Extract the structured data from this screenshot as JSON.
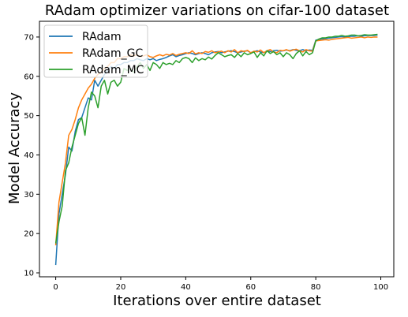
{
  "colors": {
    "RAdam": "#1f77b4",
    "RAdam_GC": "#ff7f0e",
    "RAdam_MC": "#2ca02c",
    "background": "#ffffff",
    "axis": "#000000"
  },
  "chart_data": {
    "type": "line",
    "title": "RAdam optimizer variations on cifar-100 dataset",
    "xlabel": "Iterations over entire dataset",
    "ylabel": "Model Accuracy",
    "xlim": [
      -5,
      104
    ],
    "ylim": [
      9,
      74
    ],
    "xticks": [
      0,
      20,
      40,
      60,
      80,
      100
    ],
    "yticks": [
      10,
      20,
      30,
      40,
      50,
      60,
      70
    ],
    "grid": false,
    "legend_position": "top-left",
    "x": [
      0,
      1,
      2,
      3,
      4,
      5,
      6,
      7,
      8,
      9,
      10,
      11,
      12,
      13,
      14,
      15,
      16,
      17,
      18,
      19,
      20,
      21,
      22,
      23,
      24,
      25,
      26,
      27,
      28,
      29,
      30,
      31,
      32,
      33,
      34,
      35,
      36,
      37,
      38,
      39,
      40,
      41,
      42,
      43,
      44,
      45,
      46,
      47,
      48,
      49,
      50,
      51,
      52,
      53,
      54,
      55,
      56,
      57,
      58,
      59,
      60,
      61,
      62,
      63,
      64,
      65,
      66,
      67,
      68,
      69,
      70,
      71,
      72,
      73,
      74,
      75,
      76,
      77,
      78,
      79,
      80,
      81,
      82,
      83,
      84,
      85,
      86,
      87,
      88,
      89,
      90,
      91,
      92,
      93,
      94,
      95,
      96,
      97,
      98,
      99
    ],
    "series": [
      {
        "name": "RAdam",
        "color": "#1f77b4",
        "values": [
          12.0,
          25.0,
          30.0,
          35.0,
          42.0,
          41.0,
          46.0,
          49.0,
          49.5,
          52.0,
          54.5,
          54.0,
          59.0,
          57.5,
          59.0,
          60.5,
          61.5,
          62.5,
          62.0,
          63.0,
          63.0,
          63.5,
          63.5,
          64.0,
          64.0,
          64.5,
          64.2,
          64.0,
          64.5,
          64.2,
          64.5,
          64.0,
          64.3,
          64.5,
          64.8,
          65.2,
          65.5,
          65.0,
          65.3,
          65.5,
          65.8,
          66.0,
          65.8,
          65.5,
          65.8,
          66.0,
          65.8,
          65.5,
          66.0,
          66.2,
          66.3,
          66.0,
          66.2,
          66.4,
          66.5,
          66.3,
          66.0,
          66.2,
          66.4,
          66.5,
          66.0,
          66.3,
          66.5,
          66.2,
          66.0,
          66.5,
          66.3,
          66.5,
          66.6,
          66.4,
          66.5,
          66.7,
          66.5,
          66.8,
          66.6,
          66.5,
          66.8,
          66.5,
          66.7,
          66.6,
          69.2,
          69.4,
          69.5,
          69.6,
          69.7,
          69.8,
          69.9,
          70.0,
          70.1,
          70.0,
          70.1,
          70.2,
          70.2,
          70.3,
          70.2,
          70.3,
          70.4,
          70.4,
          70.4,
          70.5
        ]
      },
      {
        "name": "RAdam_GC",
        "color": "#ff7f0e",
        "values": [
          17.0,
          28.0,
          33.0,
          38.0,
          45.0,
          46.5,
          49.0,
          52.0,
          54.0,
          55.5,
          57.0,
          58.0,
          59.5,
          60.5,
          61.0,
          62.0,
          62.5,
          63.5,
          63.5,
          64.5,
          64.5,
          65.0,
          65.0,
          65.5,
          65.2,
          65.5,
          65.0,
          65.2,
          65.5,
          65.0,
          64.8,
          65.2,
          65.5,
          65.2,
          65.6,
          65.4,
          65.8,
          65.3,
          65.6,
          65.8,
          66.0,
          65.8,
          66.5,
          65.7,
          66.0,
          65.8,
          66.3,
          66.1,
          66.5,
          66.0,
          66.2,
          66.4,
          66.0,
          66.5,
          66.2,
          66.8,
          66.0,
          66.5,
          66.3,
          66.6,
          66.0,
          66.4,
          66.2,
          66.7,
          66.0,
          66.5,
          66.8,
          66.2,
          66.0,
          66.6,
          66.5,
          66.8,
          66.4,
          66.7,
          66.9,
          66.5,
          66.2,
          66.8,
          66.5,
          66.4,
          69.0,
          69.1,
          69.2,
          69.3,
          69.2,
          69.4,
          69.5,
          69.6,
          69.7,
          69.8,
          69.9,
          69.7,
          69.8,
          69.9,
          70.0,
          69.8,
          70.0,
          69.9,
          70.0,
          70.0
        ]
      },
      {
        "name": "RAdam_MC",
        "color": "#2ca02c",
        "values": [
          17.5,
          23.0,
          27.0,
          36.0,
          38.0,
          42.0,
          45.0,
          48.0,
          49.5,
          45.0,
          52.0,
          56.0,
          55.0,
          52.0,
          57.5,
          59.0,
          55.5,
          58.5,
          59.0,
          57.5,
          58.5,
          62.0,
          61.5,
          62.0,
          61.0,
          62.5,
          63.5,
          62.0,
          63.0,
          61.5,
          63.5,
          63.0,
          62.0,
          63.5,
          63.0,
          63.3,
          63.0,
          64.0,
          63.5,
          64.5,
          64.8,
          64.5,
          63.5,
          64.7,
          64.0,
          64.5,
          64.2,
          64.9,
          64.4,
          65.3,
          66.0,
          65.5,
          65.0,
          65.3,
          65.5,
          64.8,
          65.8,
          65.0,
          66.0,
          65.5,
          65.8,
          66.2,
          64.8,
          66.0,
          65.2,
          66.5,
          65.8,
          66.3,
          65.5,
          66.0,
          65.0,
          66.0,
          65.5,
          64.5,
          65.8,
          66.5,
          65.2,
          66.3,
          65.5,
          66.0,
          69.0,
          69.5,
          69.8,
          69.8,
          70.0,
          70.0,
          70.2,
          70.2,
          70.4,
          70.2,
          70.3,
          70.5,
          70.5,
          70.3,
          70.4,
          70.6,
          70.5,
          70.5,
          70.6,
          70.7
        ]
      }
    ]
  }
}
